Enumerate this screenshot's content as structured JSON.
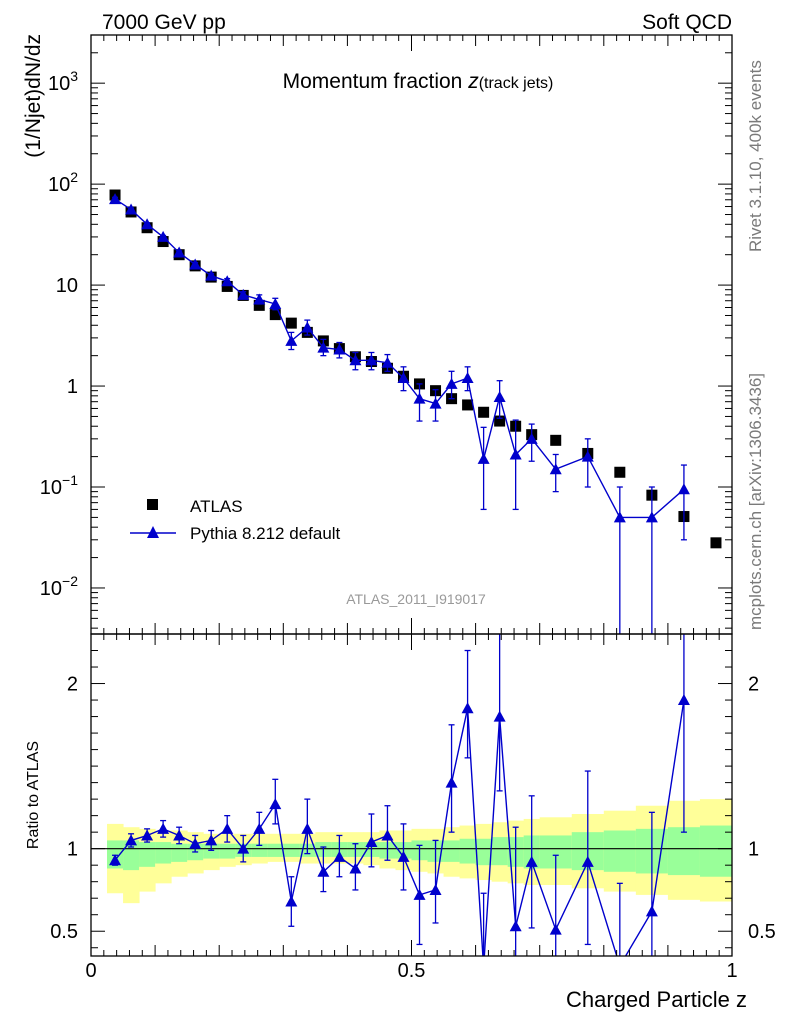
{
  "header": {
    "left": "7000 GeV pp",
    "right": "Soft QCD"
  },
  "side_labels": {
    "rivet": "Rivet 3.1.10,  400k events",
    "mcplots": "mcplots.cern.ch [arXiv:1306.3436]"
  },
  "colors": {
    "data": "#000000",
    "mc": "#0000cc",
    "band_inner": "#99ff99",
    "band_outer": "#ffff99"
  },
  "chart_data": [
    {
      "type": "scatter",
      "title": "Momentum fraction",
      "title_symbol": "z",
      "title_sub": "(track jets)",
      "ylabel": "(1/Njet)dN/dz",
      "yscale": "log",
      "ylim": [
        0.0035,
        3000
      ],
      "xlim": [
        0,
        1
      ],
      "y_ticks": [
        {
          "value": 1000,
          "base": "10",
          "exp": "3"
        },
        {
          "value": 100,
          "base": "10",
          "exp": "2"
        },
        {
          "value": 10,
          "base": "10",
          "exp": ""
        },
        {
          "value": 1,
          "base": "1",
          "exp": ""
        },
        {
          "value": 0.1,
          "base": "10",
          "exp": "−1"
        },
        {
          "value": 0.01,
          "base": "10",
          "exp": "−2"
        }
      ],
      "legend": [
        {
          "label": "ATLAS",
          "marker": "square"
        },
        {
          "label": "Pythia 8.212 default",
          "marker": "triangle"
        }
      ],
      "analysis_id": "ATLAS_2011_I919017",
      "series": [
        {
          "name": "ATLAS",
          "x": [
            0.0375,
            0.0625,
            0.0875,
            0.1125,
            0.1375,
            0.1625,
            0.1875,
            0.2125,
            0.2375,
            0.2625,
            0.2875,
            0.3125,
            0.3375,
            0.3625,
            0.3875,
            0.4125,
            0.4375,
            0.4625,
            0.4875,
            0.5125,
            0.5375,
            0.5625,
            0.5875,
            0.6125,
            0.6375,
            0.6625,
            0.6875,
            0.725,
            0.775,
            0.825,
            0.875,
            0.925,
            0.975
          ],
          "y": [
            78,
            53,
            37,
            27,
            20,
            15.5,
            12,
            9.7,
            7.9,
            6.3,
            5.1,
            4.2,
            3.4,
            2.8,
            2.35,
            1.95,
            1.75,
            1.5,
            1.25,
            1.05,
            0.9,
            0.75,
            0.65,
            0.55,
            0.45,
            0.4,
            0.33,
            0.29,
            0.215,
            0.14,
            0.083,
            0.051,
            0.028
          ]
        },
        {
          "name": "Pythia 8.212 default",
          "x": [
            0.0375,
            0.0625,
            0.0875,
            0.1125,
            0.1375,
            0.1625,
            0.1875,
            0.2125,
            0.2375,
            0.2625,
            0.2875,
            0.3125,
            0.3375,
            0.3625,
            0.3875,
            0.4125,
            0.4375,
            0.4625,
            0.4875,
            0.5125,
            0.5375,
            0.5625,
            0.5875,
            0.6125,
            0.6375,
            0.6625,
            0.6875,
            0.725,
            0.775,
            0.825,
            0.875,
            0.925
          ],
          "y": [
            71,
            56,
            40,
            30,
            21,
            16,
            12.4,
            10.9,
            8.0,
            7.2,
            6.5,
            2.8,
            3.8,
            2.4,
            2.3,
            1.8,
            1.8,
            1.7,
            1.2,
            0.75,
            0.67,
            1.05,
            1.2,
            0.19,
            0.78,
            0.21,
            0.3,
            0.15,
            0.2,
            0.05,
            0.05,
            0.095
          ],
          "yerr_low": [
            3,
            2,
            1.5,
            1,
            0.8,
            0.7,
            0.6,
            0.7,
            0.6,
            0.7,
            0.8,
            0.5,
            0.6,
            0.4,
            0.4,
            0.35,
            0.35,
            0.3,
            0.3,
            0.3,
            0.22,
            0.3,
            0.3,
            0.13,
            0.3,
            0.15,
            0.12,
            0.06,
            0.1,
            0.049,
            0.049,
            0.065
          ],
          "yerr_high": [
            3,
            2,
            1.5,
            1,
            0.8,
            0.7,
            0.6,
            0.7,
            0.6,
            0.8,
            0.9,
            0.6,
            0.7,
            0.5,
            0.4,
            0.35,
            0.35,
            0.35,
            0.35,
            0.3,
            0.25,
            0.35,
            0.35,
            0.2,
            0.35,
            0.25,
            0.12,
            0.06,
            0.1,
            0.05,
            0.05,
            0.07
          ]
        }
      ]
    },
    {
      "type": "line",
      "ylabel": "Ratio to ATLAS",
      "xlabel": "Charged Particle z",
      "ylim": [
        0.35,
        2.3
      ],
      "xlim": [
        0,
        1
      ],
      "x_ticks": [
        {
          "value": 0,
          "label": "0"
        },
        {
          "value": 0.5,
          "label": "0.5"
        },
        {
          "value": 1,
          "label": "1"
        }
      ],
      "y_ticks": [
        {
          "value": 0.5,
          "label": "0.5"
        },
        {
          "value": 1,
          "label": "1"
        },
        {
          "value": 2,
          "label": "2"
        }
      ],
      "reference": 1,
      "band_edges": [
        0.025,
        0.05,
        0.075,
        0.1,
        0.125,
        0.15,
        0.175,
        0.2,
        0.225,
        0.25,
        0.275,
        0.3,
        0.325,
        0.35,
        0.375,
        0.4,
        0.425,
        0.45,
        0.475,
        0.5,
        0.525,
        0.55,
        0.575,
        0.6,
        0.625,
        0.65,
        0.675,
        0.7,
        0.75,
        0.8,
        0.85,
        0.9,
        0.95,
        1.0
      ],
      "band_inner_low": [
        0.88,
        0.87,
        0.89,
        0.91,
        0.92,
        0.93,
        0.94,
        0.94,
        0.95,
        0.95,
        0.95,
        0.95,
        0.95,
        0.95,
        0.95,
        0.95,
        0.95,
        0.94,
        0.94,
        0.93,
        0.92,
        0.92,
        0.91,
        0.9,
        0.9,
        0.89,
        0.88,
        0.88,
        0.87,
        0.86,
        0.85,
        0.84,
        0.83
      ],
      "band_inner_high": [
        1.05,
        1.05,
        1.04,
        1.04,
        1.03,
        1.03,
        1.03,
        1.03,
        1.03,
        1.03,
        1.03,
        1.03,
        1.03,
        1.04,
        1.04,
        1.04,
        1.04,
        1.04,
        1.04,
        1.05,
        1.05,
        1.05,
        1.06,
        1.06,
        1.07,
        1.07,
        1.08,
        1.08,
        1.1,
        1.11,
        1.12,
        1.13,
        1.14
      ],
      "band_outer_low": [
        0.73,
        0.67,
        0.74,
        0.79,
        0.83,
        0.85,
        0.87,
        0.89,
        0.9,
        0.91,
        0.92,
        0.92,
        0.91,
        0.91,
        0.91,
        0.91,
        0.9,
        0.88,
        0.87,
        0.86,
        0.85,
        0.83,
        0.82,
        0.81,
        0.8,
        0.79,
        0.78,
        0.78,
        0.76,
        0.74,
        0.72,
        0.69,
        0.68
      ],
      "band_outer_high": [
        1.15,
        1.13,
        1.12,
        1.11,
        1.11,
        1.1,
        1.09,
        1.09,
        1.09,
        1.09,
        1.09,
        1.09,
        1.09,
        1.1,
        1.1,
        1.1,
        1.1,
        1.11,
        1.11,
        1.12,
        1.12,
        1.13,
        1.14,
        1.15,
        1.16,
        1.17,
        1.18,
        1.19,
        1.21,
        1.23,
        1.26,
        1.29,
        1.3
      ],
      "series": [
        {
          "name": "Pythia 8.212 default / ATLAS",
          "x": [
            0.0375,
            0.0625,
            0.0875,
            0.1125,
            0.1375,
            0.1625,
            0.1875,
            0.2125,
            0.2375,
            0.2625,
            0.2875,
            0.3125,
            0.3375,
            0.3625,
            0.3875,
            0.4125,
            0.4375,
            0.4625,
            0.4875,
            0.5125,
            0.5375,
            0.5625,
            0.5875,
            0.6125,
            0.6375,
            0.6625,
            0.6875,
            0.725,
            0.775,
            0.825,
            0.875,
            0.925
          ],
          "y": [
            0.93,
            1.05,
            1.08,
            1.12,
            1.08,
            1.03,
            1.05,
            1.12,
            1.0,
            1.12,
            1.27,
            0.68,
            1.12,
            0.86,
            0.95,
            0.88,
            1.04,
            1.08,
            0.95,
            0.72,
            0.75,
            1.4,
            1.85,
            0.28,
            1.8,
            0.53,
            0.92,
            0.51,
            0.92,
            0.29,
            0.62,
            1.9
          ],
          "yerr_low": [
            0.03,
            0.04,
            0.04,
            0.05,
            0.05,
            0.05,
            0.06,
            0.08,
            0.08,
            0.1,
            0.12,
            0.15,
            0.15,
            0.12,
            0.12,
            0.13,
            0.15,
            0.15,
            0.2,
            0.3,
            0.2,
            0.3,
            0.3,
            0.3,
            0.45,
            0.5,
            0.4,
            0.4,
            0.5,
            0.3,
            0.6,
            0.8
          ],
          "yerr_high": [
            0.03,
            0.04,
            0.04,
            0.05,
            0.05,
            0.05,
            0.06,
            0.08,
            0.08,
            0.1,
            0.15,
            0.15,
            0.18,
            0.15,
            0.13,
            0.15,
            0.17,
            0.18,
            0.2,
            0.3,
            0.3,
            0.35,
            0.35,
            0.45,
            0.5,
            0.6,
            0.4,
            0.45,
            0.55,
            0.5,
            0.6,
            0.9
          ]
        }
      ]
    }
  ]
}
